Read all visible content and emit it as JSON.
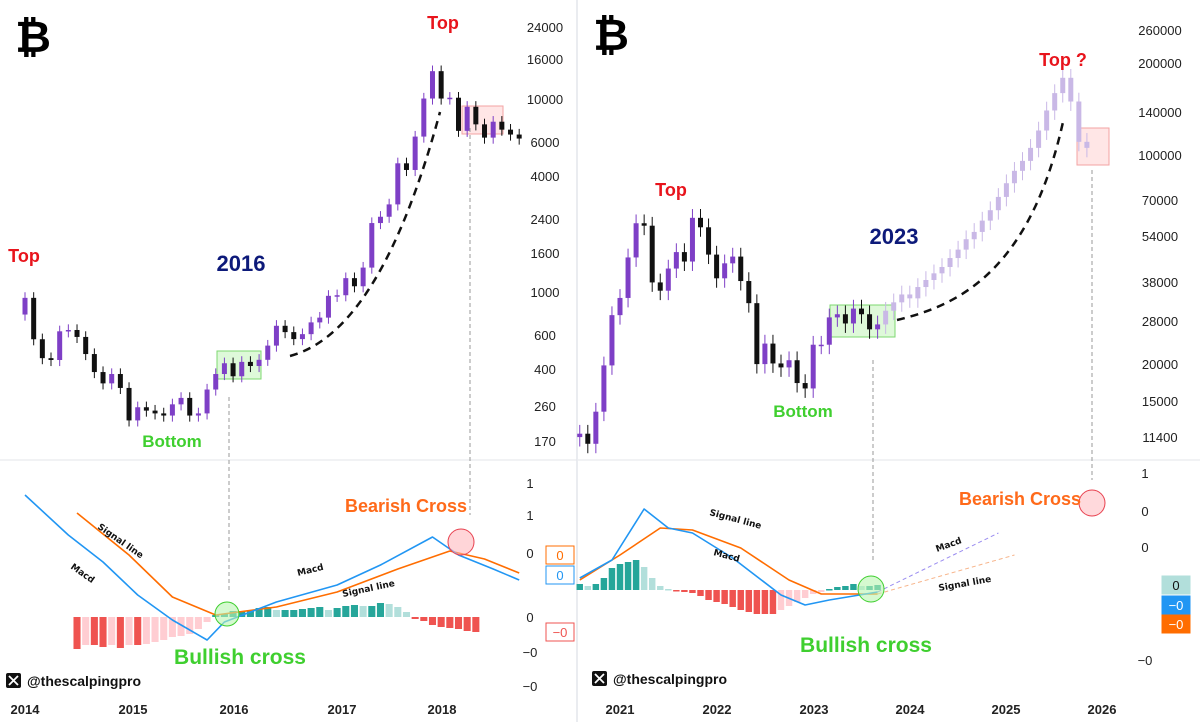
{
  "colors": {
    "up": "#7e3fc6",
    "down": "#111111",
    "projection": "#c9b8e6",
    "macd": "#2196f3",
    "signal": "#ff6d00",
    "hist_pos_strong": "#26a69a",
    "hist_pos_weak": "#b2dfdb",
    "hist_neg_strong": "#ef5350",
    "hist_neg_weak": "#ffcdd2",
    "top": "#e8141c",
    "year": "#0d1a7a",
    "bottom": "#3fcf2f",
    "bearish": "#ff6a1a",
    "bullish": "#3fcf2f"
  },
  "watermark": "@thescalpingpro",
  "logo": "bitcoin-logo",
  "chart_data": [
    {
      "type": "candlestick",
      "panel": "left",
      "interval": "monthly",
      "scale": "log",
      "ylim": [
        170,
        24000
      ],
      "y_ticks": [
        "24000",
        "16000",
        "10000",
        "6000",
        "4000",
        "2400",
        "1600",
        "1000",
        "600",
        "400",
        "260",
        "170"
      ],
      "x_ticks": [
        "2014",
        "2015",
        "2016",
        "2017",
        "2018"
      ],
      "start": "2014-01",
      "first_open": 770,
      "closes": [
        940,
        573,
        457,
        447,
        630,
        640,
        589,
        480,
        387,
        338,
        378,
        320,
        217,
        254,
        244,
        236,
        230,
        263,
        284,
        230,
        236,
        314,
        378,
        430,
        368,
        437,
        416,
        448,
        531,
        673,
        624,
        574,
        609,
        701,
        742,
        963,
        970,
        1190,
        1080,
        1350,
        2300,
        2480,
        2875,
        4700,
        4340,
        6470,
        10200,
        14150,
        10200,
        10300,
        6930,
        9240,
        7490,
        6390,
        7730,
        7030,
        6630,
        6320
      ],
      "annotations": {
        "top_left": "Top",
        "top_right": "Top",
        "year": "2016",
        "bottom": "Bottom",
        "bearish": "Bearish Cross",
        "bullish": "Bullish cross"
      },
      "macd": {
        "y_ticks": [
          "1",
          "1",
          "0",
          "0",
          "−0",
          "−0"
        ],
        "last_values": {
          "signal": "0",
          "macd": "0",
          "histogram": "−0"
        },
        "labels": {
          "signal": "Signal line",
          "macd": "Macd"
        },
        "macd_line": [
          [
            "2014-01",
            1.22
          ],
          [
            "2014-06",
            0.82
          ],
          [
            "2014-10",
            0.55
          ],
          [
            "2015-02",
            0.22
          ],
          [
            "2015-06",
            -0.03
          ],
          [
            "2015-10",
            -0.23
          ],
          [
            "2015-12",
            -0.05
          ],
          [
            "2016-06",
            0.15
          ],
          [
            "2017-01",
            0.32
          ],
          [
            "2017-06",
            0.52
          ],
          [
            "2017-12",
            0.8
          ],
          [
            "2018-03",
            0.62
          ],
          [
            "2018-07",
            0.48
          ],
          [
            "2018-10",
            0.37
          ]
        ],
        "signal_line": [
          [
            "2014-07",
            1.04
          ],
          [
            "2015-01",
            0.62
          ],
          [
            "2015-06",
            0.2
          ],
          [
            "2015-11",
            0.02
          ],
          [
            "2016-06",
            0.1
          ],
          [
            "2017-01",
            0.25
          ],
          [
            "2017-08",
            0.48
          ],
          [
            "2018-02",
            0.66
          ],
          [
            "2018-06",
            0.58
          ],
          [
            "2018-10",
            0.44
          ]
        ],
        "hist_start": "2014-07",
        "histogram": [
          -0.32,
          -0.28,
          -0.28,
          -0.3,
          -0.28,
          -0.31,
          -0.28,
          -0.28,
          -0.27,
          -0.25,
          -0.23,
          -0.2,
          -0.19,
          -0.17,
          -0.12,
          -0.05,
          0.02,
          0.03,
          0.06,
          0.06,
          0.07,
          0.09,
          0.1,
          0.07,
          0.07,
          0.07,
          0.08,
          0.09,
          0.1,
          0.07,
          0.09,
          0.11,
          0.12,
          0.11,
          0.11,
          0.14,
          0.13,
          0.1,
          0.05,
          -0.02,
          -0.04,
          -0.08,
          -0.1,
          -0.11,
          -0.12,
          -0.14,
          -0.15
        ]
      }
    },
    {
      "type": "candlestick",
      "panel": "right",
      "interval": "monthly",
      "scale": "log",
      "ylim": [
        11400,
        260000
      ],
      "y_ticks": [
        "260000",
        "200000",
        "140000",
        "100000",
        "70000",
        "54000",
        "38000",
        "28000",
        "20000",
        "15000",
        "11400"
      ],
      "x_ticks": [
        "2021",
        "2022",
        "2023",
        "2024",
        "2025",
        "2026"
      ],
      "start": "2020-08",
      "first_open": 11350,
      "closes": [
        11650,
        10780,
        13800,
        19700,
        29000,
        33100,
        45200,
        58800,
        57700,
        37300,
        35000,
        41500,
        47100,
        43800,
        61300,
        57000,
        46200,
        38500,
        43200,
        45500,
        37700,
        31800,
        19900,
        23300,
        20000,
        19400,
        20500,
        17200,
        16500,
        23100,
        23100,
        28500,
        29200,
        27200,
        30500,
        29200,
        26000,
        27000
      ],
      "projection_closes": [
        30000,
        32000,
        34000,
        33000,
        36000,
        38000,
        40000,
        42000,
        45000,
        48000,
        52000,
        55000,
        60000,
        65000,
        72000,
        80000,
        88000,
        95000,
        105000,
        120000,
        140000,
        160000,
        180000,
        150000,
        110000,
        105000
      ],
      "annotations": {
        "top_left": "Top",
        "top_right": "Top ?",
        "year": "2023",
        "bottom": "Bottom",
        "bearish": "Bearish Cross",
        "bullish": "Bullish cross"
      },
      "macd": {
        "y_ticks": [
          "1",
          "0",
          "0",
          "−0"
        ],
        "last_values": {
          "histogram": "0",
          "macd": "−0",
          "signal": "−0"
        },
        "labels": {
          "signal": "Signal line",
          "macd": "Macd"
        },
        "macd_line": [
          [
            "2020-08",
            0.12
          ],
          [
            "2020-12",
            0.3
          ],
          [
            "2021-04",
            0.81
          ],
          [
            "2021-07",
            0.62
          ],
          [
            "2021-10",
            0.57
          ],
          [
            "2022-03",
            0.32
          ],
          [
            "2022-09",
            -0.05
          ],
          [
            "2022-12",
            -0.15
          ],
          [
            "2023-03",
            -0.1
          ],
          [
            "2023-09",
            -0.02
          ]
        ],
        "signal_line": [
          [
            "2020-08",
            0.1
          ],
          [
            "2021-01",
            0.35
          ],
          [
            "2021-06",
            0.62
          ],
          [
            "2021-10",
            0.6
          ],
          [
            "2022-04",
            0.42
          ],
          [
            "2022-10",
            0.1
          ],
          [
            "2023-02",
            -0.04
          ],
          [
            "2023-09",
            -0.04
          ]
        ],
        "macd_projection": [
          [
            "2023-09",
            -0.02
          ],
          [
            "2024-12",
            0.57
          ]
        ],
        "signal_projection": [
          [
            "2023-09",
            -0.04
          ],
          [
            "2025-02",
            0.35
          ]
        ],
        "hist_start": "2020-08",
        "histogram": [
          0.06,
          0.04,
          0.06,
          0.12,
          0.22,
          0.26,
          0.28,
          0.3,
          0.23,
          0.12,
          0.04,
          0.01,
          -0.01,
          -0.02,
          -0.03,
          -0.06,
          -0.1,
          -0.12,
          -0.14,
          -0.17,
          -0.2,
          -0.22,
          -0.24,
          -0.24,
          -0.24,
          -0.2,
          -0.16,
          -0.12,
          -0.08,
          -0.04,
          -0.02,
          0.01,
          0.03,
          0.04,
          0.06,
          0.04,
          0.04,
          0.05
        ]
      }
    }
  ]
}
